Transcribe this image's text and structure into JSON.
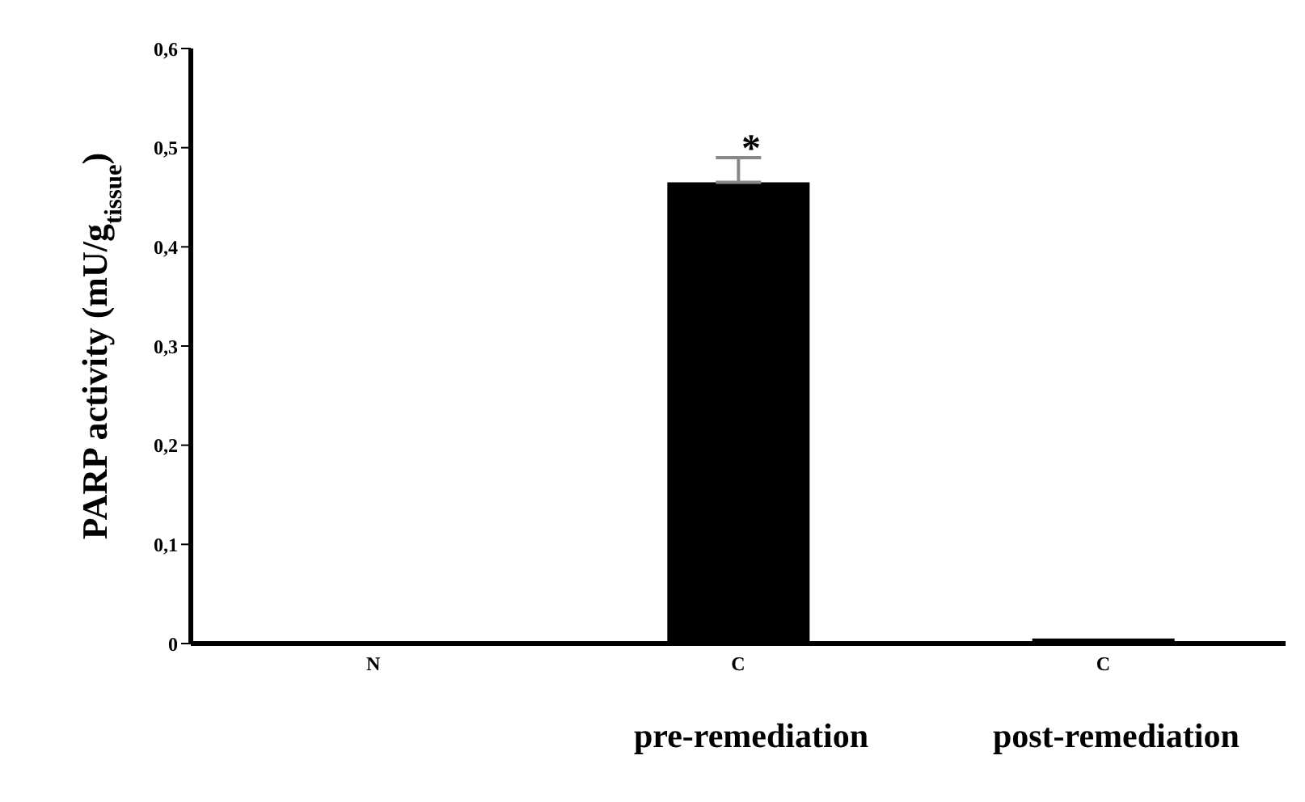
{
  "chart_data": {
    "type": "bar",
    "ylabel": "PARP activity (mU/g$_{tissue}$)",
    "categories": [
      "N",
      "C",
      "C"
    ],
    "values": [
      0.002,
      0.465,
      0.005
    ],
    "color": "#000000",
    "errors": [
      null,
      0.025,
      null
    ],
    "ylim": [
      0,
      0.6
    ],
    "yticks": [
      {
        "value": 0,
        "label": "0"
      },
      {
        "value": 0.1,
        "label": "0,1"
      },
      {
        "value": 0.2,
        "label": "0,2"
      },
      {
        "value": 0.3,
        "label": "0,3"
      },
      {
        "value": 0.4,
        "label": "0,4"
      },
      {
        "value": 0.5,
        "label": "0,5"
      },
      {
        "value": 0.6,
        "label": "0,6"
      }
    ],
    "grid": false,
    "legend": false,
    "annotations": [
      "*",
      "pre-remediation",
      "post-remediation"
    ]
  }
}
